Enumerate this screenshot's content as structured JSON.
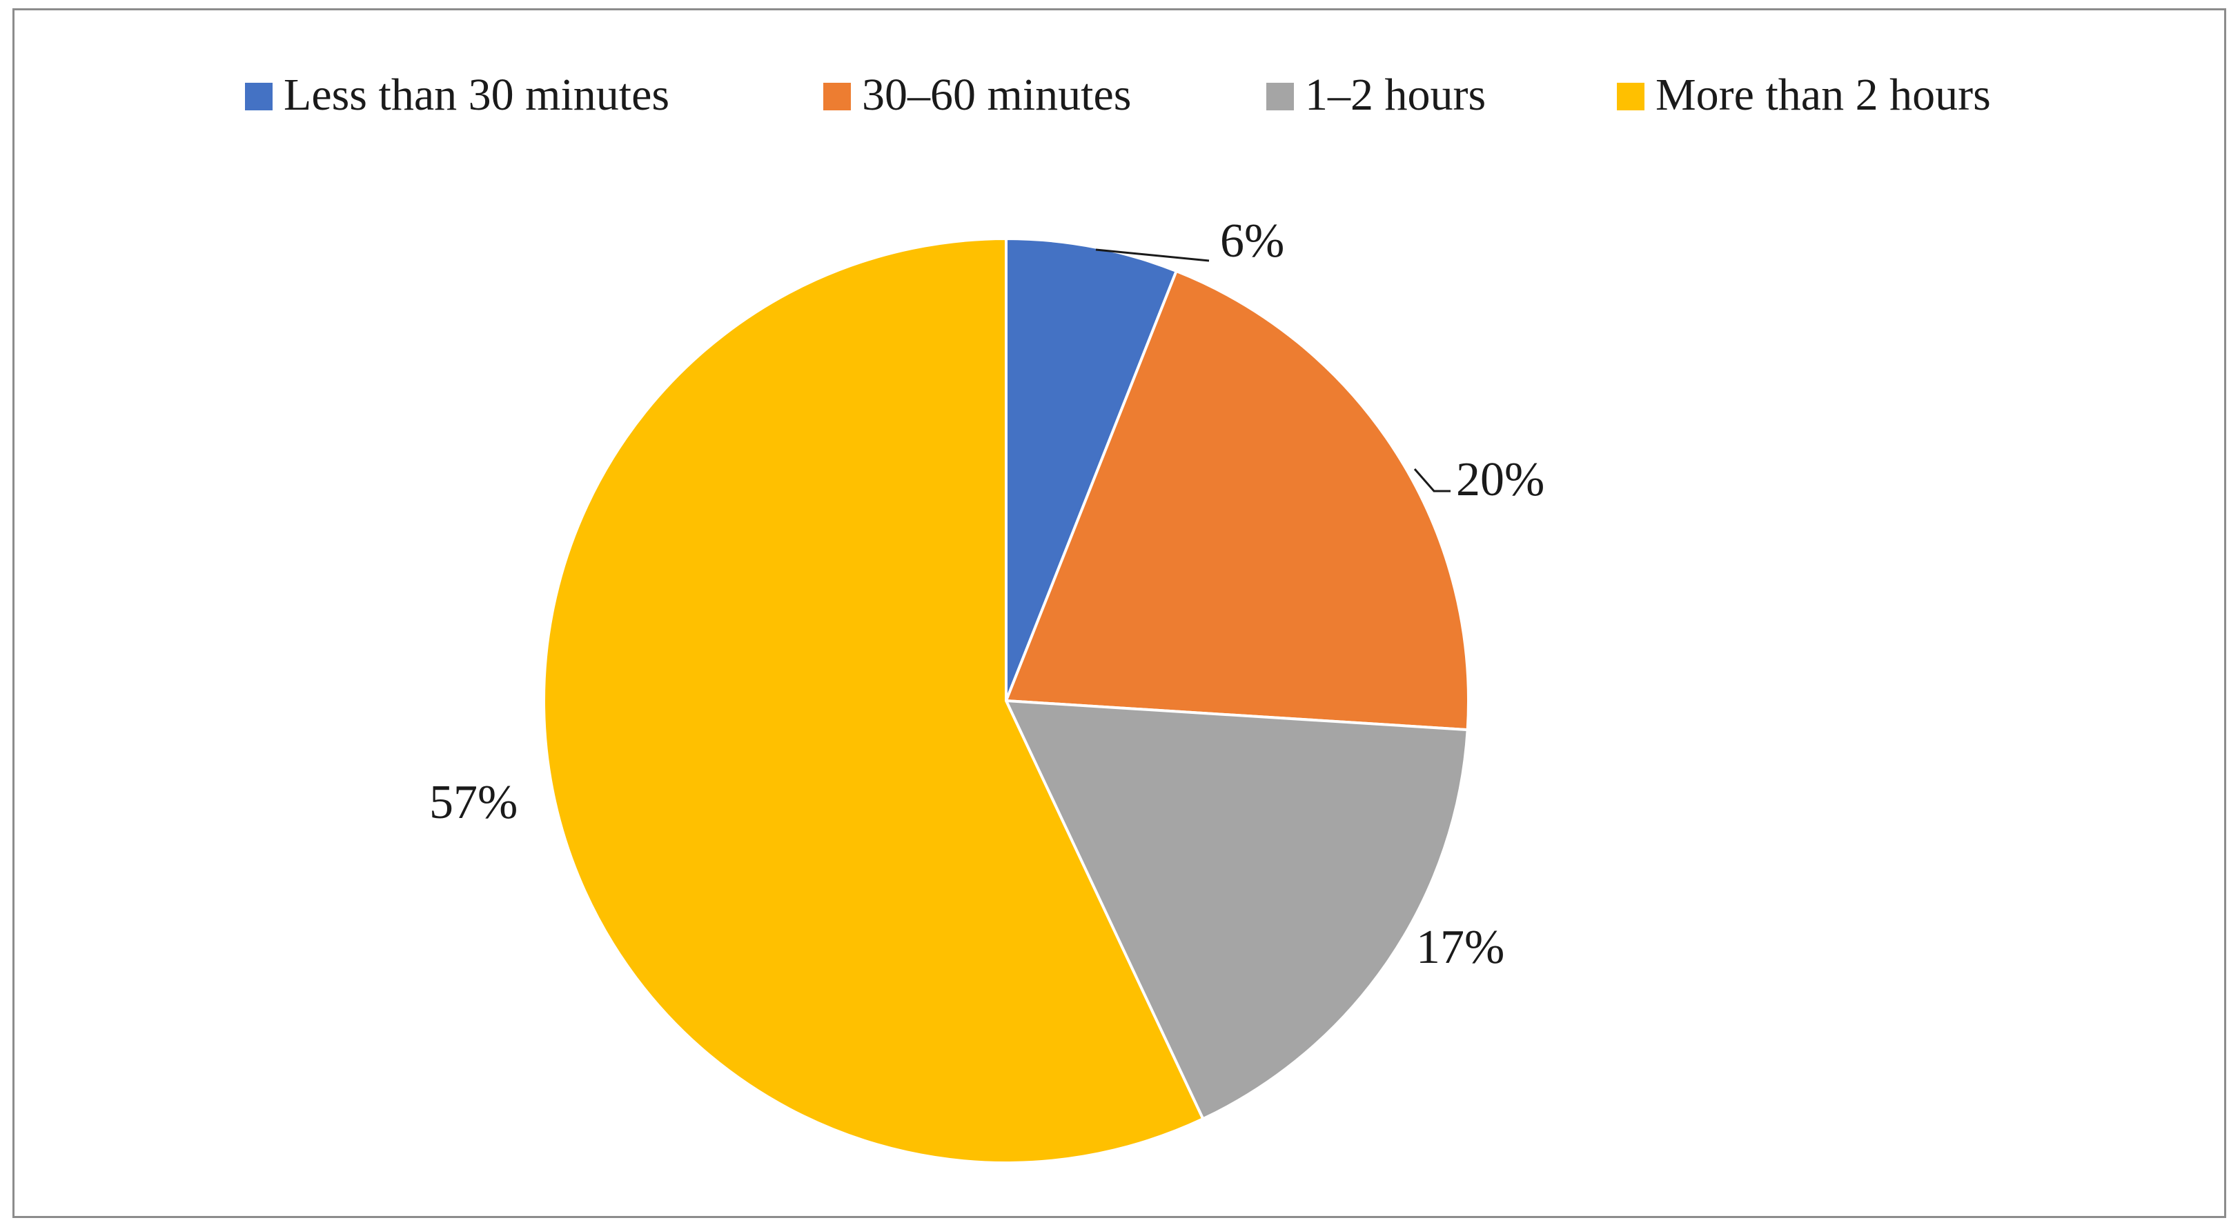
{
  "chart_data": {
    "type": "pie",
    "title": "",
    "legend_position": "top",
    "categories": [
      "Less than 30 minutes",
      "30–60 minutes",
      "1–2 hours",
      "More than 2 hours"
    ],
    "values": [
      6,
      20,
      17,
      57
    ],
    "labels": [
      "6%",
      "20%",
      "17%",
      "57%"
    ],
    "colors": [
      "#4472c4",
      "#ed7d31",
      "#a5a5a5",
      "#ffc000"
    ]
  }
}
